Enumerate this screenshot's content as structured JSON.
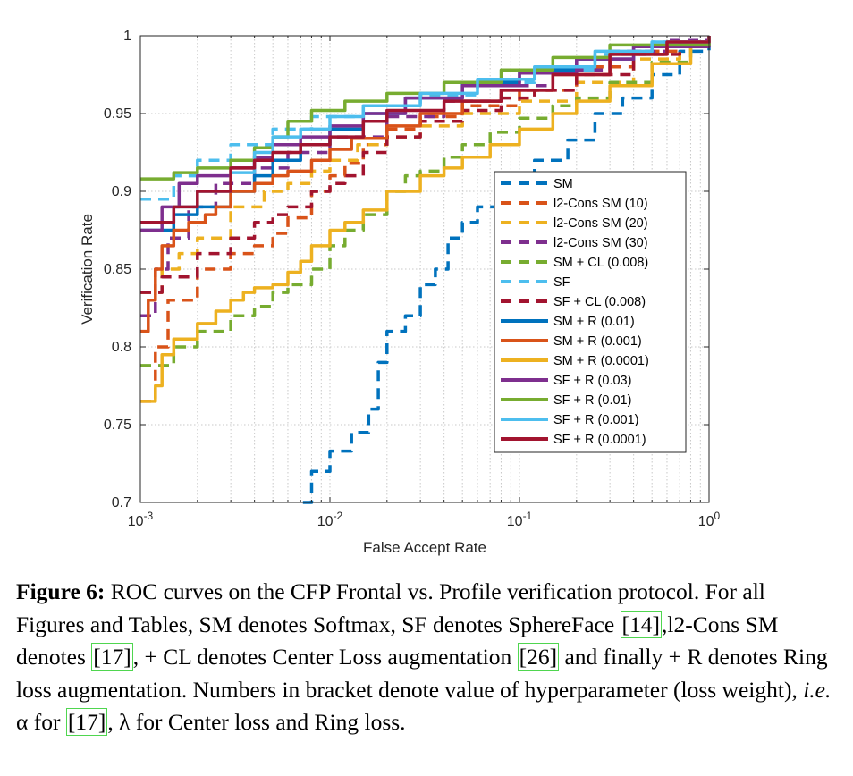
{
  "chart_data": {
    "type": "line",
    "title": "",
    "xlabel": "False Accept Rate",
    "ylabel": "Verification Rate",
    "xscale": "log",
    "xlim": [
      0.001,
      1
    ],
    "ylim": [
      0.7,
      1
    ],
    "xticks": [
      0.001,
      0.01,
      0.1,
      1
    ],
    "xtick_labels": [
      {
        "base": "10",
        "exp": "-3"
      },
      {
        "base": "10",
        "exp": "-2"
      },
      {
        "base": "10",
        "exp": "-1"
      },
      {
        "base": "10",
        "exp": "0"
      }
    ],
    "yticks": [
      0.7,
      0.75,
      0.8,
      0.85,
      0.9,
      0.95,
      1
    ],
    "ytick_labels": [
      "0.7",
      "0.75",
      "0.8",
      "0.85",
      "0.9",
      "0.95",
      "1"
    ],
    "grid": true,
    "legend_position": "lower-right",
    "series": [
      {
        "name": "SM",
        "color": "#0072BD",
        "dashed": true,
        "points": [
          [
            0.0072,
            0.7
          ],
          [
            0.008,
            0.72
          ],
          [
            0.01,
            0.733
          ],
          [
            0.013,
            0.745
          ],
          [
            0.016,
            0.76
          ],
          [
            0.018,
            0.79
          ],
          [
            0.02,
            0.81
          ],
          [
            0.025,
            0.82
          ],
          [
            0.03,
            0.84
          ],
          [
            0.036,
            0.85
          ],
          [
            0.042,
            0.87
          ],
          [
            0.05,
            0.88
          ],
          [
            0.06,
            0.89
          ],
          [
            0.075,
            0.905
          ],
          [
            0.09,
            0.91
          ],
          [
            0.12,
            0.92
          ],
          [
            0.18,
            0.933
          ],
          [
            0.25,
            0.95
          ],
          [
            0.35,
            0.96
          ],
          [
            0.5,
            0.975
          ],
          [
            0.7,
            0.99
          ],
          [
            1,
            1
          ]
        ]
      },
      {
        "name": "l2-Cons SM (10)",
        "color": "#D95319",
        "dashed": true,
        "points": [
          [
            0.001,
            0.765
          ],
          [
            0.0012,
            0.8
          ],
          [
            0.0014,
            0.83
          ],
          [
            0.002,
            0.85
          ],
          [
            0.003,
            0.86
          ],
          [
            0.004,
            0.865
          ],
          [
            0.005,
            0.873
          ],
          [
            0.006,
            0.883
          ],
          [
            0.008,
            0.9
          ],
          [
            0.01,
            0.91
          ],
          [
            0.012,
            0.918
          ],
          [
            0.015,
            0.93
          ],
          [
            0.02,
            0.94
          ],
          [
            0.03,
            0.948
          ],
          [
            0.05,
            0.955
          ],
          [
            0.1,
            0.965
          ],
          [
            0.2,
            0.98
          ],
          [
            0.4,
            0.99
          ],
          [
            0.7,
            0.996
          ],
          [
            1,
            1
          ]
        ]
      },
      {
        "name": "l2-Cons SM (20)",
        "color": "#EDB120",
        "dashed": true,
        "points": [
          [
            0.001,
            0.835
          ],
          [
            0.0013,
            0.85
          ],
          [
            0.0016,
            0.86
          ],
          [
            0.002,
            0.87
          ],
          [
            0.003,
            0.89
          ],
          [
            0.0045,
            0.9
          ],
          [
            0.006,
            0.905
          ],
          [
            0.008,
            0.913
          ],
          [
            0.01,
            0.92
          ],
          [
            0.014,
            0.93
          ],
          [
            0.02,
            0.935
          ],
          [
            0.03,
            0.942
          ],
          [
            0.05,
            0.95
          ],
          [
            0.1,
            0.958
          ],
          [
            0.2,
            0.97
          ],
          [
            0.4,
            0.985
          ],
          [
            0.7,
            0.995
          ],
          [
            1,
            1
          ]
        ]
      },
      {
        "name": "l2-Cons SM (30)",
        "color": "#7E2F8E",
        "dashed": true,
        "points": [
          [
            0.001,
            0.82
          ],
          [
            0.0012,
            0.85
          ],
          [
            0.0014,
            0.87
          ],
          [
            0.0018,
            0.89
          ],
          [
            0.0025,
            0.905
          ],
          [
            0.004,
            0.915
          ],
          [
            0.006,
            0.925
          ],
          [
            0.01,
            0.935
          ],
          [
            0.02,
            0.948
          ],
          [
            0.04,
            0.958
          ],
          [
            0.08,
            0.968
          ],
          [
            0.15,
            0.978
          ],
          [
            0.3,
            0.99
          ],
          [
            0.6,
            0.997
          ],
          [
            1,
            1
          ]
        ]
      },
      {
        "name": "SM + CL (0.008)",
        "color": "#77AC30",
        "dashed": true,
        "points": [
          [
            0.001,
            0.788
          ],
          [
            0.0015,
            0.8
          ],
          [
            0.002,
            0.81
          ],
          [
            0.003,
            0.82
          ],
          [
            0.004,
            0.826
          ],
          [
            0.005,
            0.835
          ],
          [
            0.006,
            0.84
          ],
          [
            0.008,
            0.85
          ],
          [
            0.01,
            0.865
          ],
          [
            0.012,
            0.875
          ],
          [
            0.015,
            0.885
          ],
          [
            0.02,
            0.9
          ],
          [
            0.025,
            0.91
          ],
          [
            0.03,
            0.913
          ],
          [
            0.04,
            0.922
          ],
          [
            0.05,
            0.93
          ],
          [
            0.07,
            0.938
          ],
          [
            0.1,
            0.947
          ],
          [
            0.15,
            0.955
          ],
          [
            0.2,
            0.96
          ],
          [
            0.3,
            0.97
          ],
          [
            0.5,
            0.983
          ],
          [
            0.8,
            0.995
          ],
          [
            1,
            1
          ]
        ]
      },
      {
        "name": "SF",
        "color": "#4DBEEE",
        "dashed": true,
        "points": [
          [
            0.001,
            0.895
          ],
          [
            0.0015,
            0.91
          ],
          [
            0.002,
            0.92
          ],
          [
            0.003,
            0.93
          ],
          [
            0.005,
            0.94
          ],
          [
            0.008,
            0.948
          ],
          [
            0.015,
            0.955
          ],
          [
            0.03,
            0.962
          ],
          [
            0.06,
            0.97
          ],
          [
            0.12,
            0.978
          ],
          [
            0.25,
            0.988
          ],
          [
            0.5,
            0.996
          ],
          [
            1,
            1
          ]
        ]
      },
      {
        "name": "SF + CL (0.008)",
        "color": "#A2142F",
        "dashed": true,
        "points": [
          [
            0.001,
            0.835
          ],
          [
            0.0013,
            0.845
          ],
          [
            0.002,
            0.86
          ],
          [
            0.003,
            0.87
          ],
          [
            0.004,
            0.88
          ],
          [
            0.005,
            0.885
          ],
          [
            0.006,
            0.89
          ],
          [
            0.008,
            0.9
          ],
          [
            0.01,
            0.905
          ],
          [
            0.012,
            0.91
          ],
          [
            0.015,
            0.925
          ],
          [
            0.02,
            0.935
          ],
          [
            0.03,
            0.945
          ],
          [
            0.05,
            0.952
          ],
          [
            0.08,
            0.96
          ],
          [
            0.12,
            0.965
          ],
          [
            0.2,
            0.975
          ],
          [
            0.4,
            0.988
          ],
          [
            0.7,
            0.996
          ],
          [
            1,
            1
          ]
        ]
      },
      {
        "name": "SM + R (0.01)",
        "color": "#0072BD",
        "dashed": false,
        "points": [
          [
            0.001,
            0.875
          ],
          [
            0.0015,
            0.885
          ],
          [
            0.002,
            0.89
          ],
          [
            0.003,
            0.9
          ],
          [
            0.004,
            0.91
          ],
          [
            0.005,
            0.92
          ],
          [
            0.007,
            0.93
          ],
          [
            0.01,
            0.94
          ],
          [
            0.015,
            0.95
          ],
          [
            0.025,
            0.96
          ],
          [
            0.05,
            0.97
          ],
          [
            0.1,
            0.978
          ],
          [
            0.2,
            0.985
          ],
          [
            0.4,
            0.993
          ],
          [
            1,
            1
          ]
        ]
      },
      {
        "name": "SM + R (0.001)",
        "color": "#D95319",
        "dashed": false,
        "points": [
          [
            0.001,
            0.81
          ],
          [
            0.0011,
            0.83
          ],
          [
            0.0012,
            0.85
          ],
          [
            0.0013,
            0.865
          ],
          [
            0.0015,
            0.875
          ],
          [
            0.0018,
            0.88
          ],
          [
            0.0022,
            0.885
          ],
          [
            0.0025,
            0.89
          ],
          [
            0.003,
            0.9
          ],
          [
            0.004,
            0.905
          ],
          [
            0.005,
            0.91
          ],
          [
            0.006,
            0.913
          ],
          [
            0.008,
            0.92
          ],
          [
            0.01,
            0.927
          ],
          [
            0.013,
            0.934
          ],
          [
            0.02,
            0.942
          ],
          [
            0.03,
            0.95
          ],
          [
            0.05,
            0.958
          ],
          [
            0.08,
            0.965
          ],
          [
            0.15,
            0.975
          ],
          [
            0.3,
            0.988
          ],
          [
            0.6,
            0.996
          ],
          [
            1,
            1
          ]
        ]
      },
      {
        "name": "SM + R (0.0001)",
        "color": "#EDB120",
        "dashed": false,
        "points": [
          [
            0.001,
            0.765
          ],
          [
            0.0012,
            0.775
          ],
          [
            0.0013,
            0.795
          ],
          [
            0.0015,
            0.805
          ],
          [
            0.002,
            0.815
          ],
          [
            0.0025,
            0.823
          ],
          [
            0.003,
            0.83
          ],
          [
            0.0035,
            0.835
          ],
          [
            0.004,
            0.838
          ],
          [
            0.005,
            0.84
          ],
          [
            0.006,
            0.848
          ],
          [
            0.007,
            0.855
          ],
          [
            0.008,
            0.865
          ],
          [
            0.01,
            0.875
          ],
          [
            0.012,
            0.88
          ],
          [
            0.015,
            0.888
          ],
          [
            0.02,
            0.9
          ],
          [
            0.03,
            0.91
          ],
          [
            0.04,
            0.915
          ],
          [
            0.05,
            0.922
          ],
          [
            0.07,
            0.93
          ],
          [
            0.1,
            0.94
          ],
          [
            0.15,
            0.95
          ],
          [
            0.2,
            0.958
          ],
          [
            0.3,
            0.968
          ],
          [
            0.5,
            0.982
          ],
          [
            0.8,
            0.995
          ],
          [
            1,
            1
          ]
        ]
      },
      {
        "name": "SF + R (0.03)",
        "color": "#7E2F8E",
        "dashed": false,
        "points": [
          [
            0.001,
            0.875
          ],
          [
            0.0013,
            0.89
          ],
          [
            0.0016,
            0.905
          ],
          [
            0.002,
            0.91
          ],
          [
            0.003,
            0.915
          ],
          [
            0.004,
            0.922
          ],
          [
            0.005,
            0.93
          ],
          [
            0.007,
            0.935
          ],
          [
            0.01,
            0.942
          ],
          [
            0.015,
            0.95
          ],
          [
            0.025,
            0.96
          ],
          [
            0.05,
            0.968
          ],
          [
            0.1,
            0.976
          ],
          [
            0.2,
            0.985
          ],
          [
            0.4,
            0.993
          ],
          [
            1,
            1
          ]
        ]
      },
      {
        "name": "SF + R (0.01)",
        "color": "#77AC30",
        "dashed": false,
        "points": [
          [
            0.001,
            0.908
          ],
          [
            0.0015,
            0.912
          ],
          [
            0.002,
            0.915
          ],
          [
            0.003,
            0.92
          ],
          [
            0.004,
            0.928
          ],
          [
            0.005,
            0.935
          ],
          [
            0.006,
            0.945
          ],
          [
            0.008,
            0.952
          ],
          [
            0.012,
            0.958
          ],
          [
            0.02,
            0.963
          ],
          [
            0.04,
            0.97
          ],
          [
            0.08,
            0.978
          ],
          [
            0.15,
            0.986
          ],
          [
            0.3,
            0.994
          ],
          [
            1,
            1
          ]
        ]
      },
      {
        "name": "SF + R (0.001)",
        "color": "#4DBEEE",
        "dashed": false,
        "points": [
          [
            0.001,
            0.88
          ],
          [
            0.0015,
            0.89
          ],
          [
            0.002,
            0.9
          ],
          [
            0.003,
            0.912
          ],
          [
            0.004,
            0.925
          ],
          [
            0.005,
            0.935
          ],
          [
            0.007,
            0.94
          ],
          [
            0.01,
            0.948
          ],
          [
            0.015,
            0.955
          ],
          [
            0.03,
            0.963
          ],
          [
            0.06,
            0.972
          ],
          [
            0.12,
            0.98
          ],
          [
            0.25,
            0.99
          ],
          [
            0.5,
            0.996
          ],
          [
            1,
            1
          ]
        ]
      },
      {
        "name": "SF + R (0.0001)",
        "color": "#A2142F",
        "dashed": false,
        "points": [
          [
            0.001,
            0.88
          ],
          [
            0.0015,
            0.89
          ],
          [
            0.002,
            0.9
          ],
          [
            0.003,
            0.915
          ],
          [
            0.004,
            0.92
          ],
          [
            0.005,
            0.925
          ],
          [
            0.007,
            0.93
          ],
          [
            0.01,
            0.935
          ],
          [
            0.015,
            0.945
          ],
          [
            0.02,
            0.952
          ],
          [
            0.04,
            0.958
          ],
          [
            0.08,
            0.965
          ],
          [
            0.15,
            0.975
          ],
          [
            0.3,
            0.988
          ],
          [
            0.6,
            0.996
          ],
          [
            1,
            1
          ]
        ]
      }
    ]
  },
  "caption": {
    "label": "Figure 6:",
    "parts": [
      " ROC curves on the CFP Frontal vs. Profile verification protocol. For all Figures and Tables, SM denotes Softmax, SF denotes SphereFace ",
      "[14]",
      ",l2-Cons SM denotes ",
      "[17]",
      ", + CL denotes Center Loss augmentation ",
      "[26]",
      " and finally + R denotes Ring loss augmentation. Numbers in bracket denote value of hyperparameter (loss weight), ",
      "i.e.",
      " α for ",
      "[17]",
      ", λ for Center loss and Ring loss."
    ]
  }
}
